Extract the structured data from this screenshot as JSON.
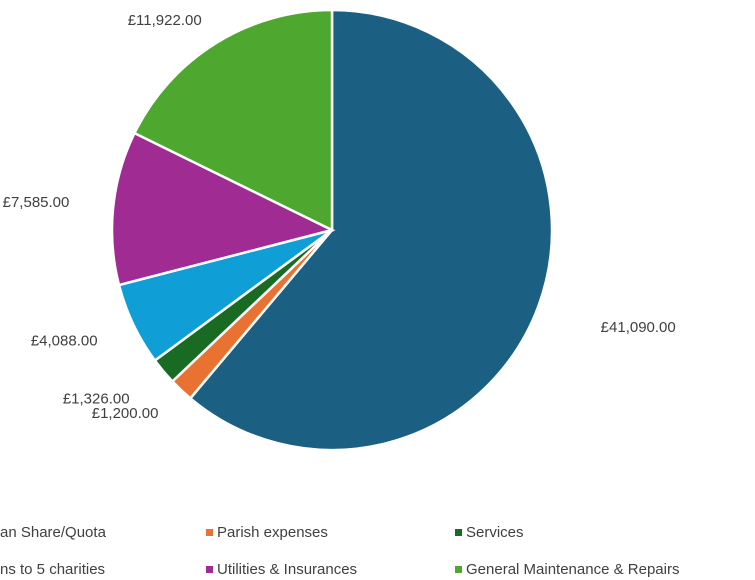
{
  "chart_data": {
    "type": "pie",
    "categories": [
      "an Share/Quota",
      "Parish expenses",
      "Services",
      "ns to 5 charities",
      "Utilities & Insurances",
      "General Maintenance & Repairs"
    ],
    "values": [
      41090,
      1200,
      1326,
      4088,
      7585,
      11922
    ],
    "value_labels": [
      "£41,090.00",
      "£1,200.00",
      "£1,326.00",
      "£4,088.00",
      "£7,585.00",
      "£11,922.00"
    ],
    "colors": [
      "#1b5f83",
      "#e97132",
      "#196b24",
      "#0f9ed5",
      "#a02b93",
      "#4ea72e"
    ]
  }
}
